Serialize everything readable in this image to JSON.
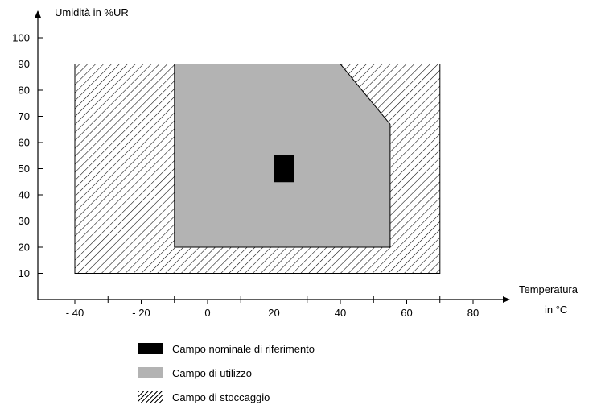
{
  "chart_data": {
    "type": "area",
    "y_axis_label": "Umidità in  %UR",
    "x_axis_label_line1": "Temperatura",
    "x_axis_label_line2": "in °C",
    "x_ticks": [
      {
        "value": -40,
        "label": "- 40"
      },
      {
        "value": -20,
        "label": "- 20"
      },
      {
        "value": 0,
        "label": "0"
      },
      {
        "value": 20,
        "label": "20"
      },
      {
        "value": 40,
        "label": "40"
      },
      {
        "value": 60,
        "label": "60"
      },
      {
        "value": 80,
        "label": "80"
      }
    ],
    "x_minor_ticks": [
      -30,
      -10,
      10,
      30,
      50,
      70
    ],
    "y_ticks": [
      {
        "value": 10,
        "label": "10"
      },
      {
        "value": 20,
        "label": "20"
      },
      {
        "value": 30,
        "label": "30"
      },
      {
        "value": 40,
        "label": "40"
      },
      {
        "value": 50,
        "label": "50"
      },
      {
        "value": 60,
        "label": "60"
      },
      {
        "value": 70,
        "label": "70"
      },
      {
        "value": 80,
        "label": "80"
      },
      {
        "value": 90,
        "label": "90"
      },
      {
        "value": 100,
        "label": "100"
      }
    ],
    "xlim": [
      -50,
      90
    ],
    "ylim": [
      0,
      110
    ],
    "regions": [
      {
        "name": "Campo di stoccaggio",
        "fill": "hatch",
        "points": [
          [
            -40,
            10
          ],
          [
            70,
            10
          ],
          [
            70,
            90
          ],
          [
            -40,
            90
          ]
        ]
      },
      {
        "name": "Campo di utilizzo",
        "fill": "#b3b3b3",
        "points": [
          [
            -10,
            20
          ],
          [
            55,
            20
          ],
          [
            55,
            67
          ],
          [
            40,
            90
          ],
          [
            -10,
            90
          ]
        ]
      },
      {
        "name": "Campo nominale di riferimento",
        "fill": "#000000",
        "points": [
          [
            20,
            45
          ],
          [
            26,
            45
          ],
          [
            26,
            55
          ],
          [
            20,
            55
          ]
        ]
      }
    ]
  },
  "legend": {
    "items": [
      {
        "label": "Campo nominale di riferimento"
      },
      {
        "label": "Campo di utilizzo"
      },
      {
        "label": "Campo di stoccaggio"
      }
    ]
  }
}
